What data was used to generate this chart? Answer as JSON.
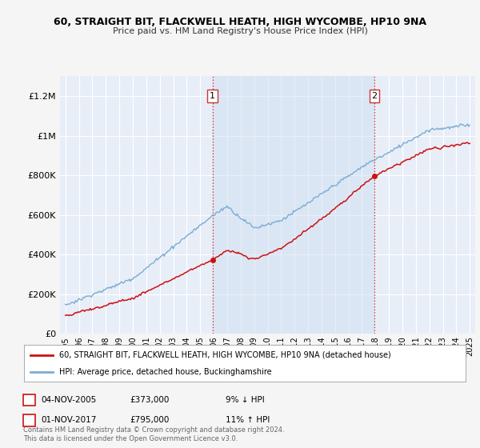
{
  "title": "60, STRAIGHT BIT, FLACKWELL HEATH, HIGH WYCOMBE, HP10 9NA",
  "subtitle": "Price paid vs. HM Land Registry's House Price Index (HPI)",
  "ytick_values": [
    0,
    200000,
    400000,
    600000,
    800000,
    1000000,
    1200000
  ],
  "ylim": [
    0,
    1300000
  ],
  "hpi_color": "#7aadd4",
  "price_color": "#cc1111",
  "background_color": "#f5f5f5",
  "plot_bg_color": "#e8eef8",
  "shade_color": "#ccddf0",
  "legend_label_price": "60, STRAIGHT BIT, FLACKWELL HEATH, HIGH WYCOMBE, HP10 9NA (detached house)",
  "legend_label_hpi": "HPI: Average price, detached house, Buckinghamshire",
  "sale1_date": "04-NOV-2005",
  "sale1_price": "£373,000",
  "sale1_hpi": "9% ↓ HPI",
  "sale2_date": "01-NOV-2017",
  "sale2_price": "£795,000",
  "sale2_hpi": "11% ↑ HPI",
  "footer": "Contains HM Land Registry data © Crown copyright and database right 2024.\nThis data is licensed under the Open Government Licence v3.0.",
  "sale1_year": 2005.917,
  "sale2_year": 2017.917,
  "sale1_val": 373000,
  "sale2_val": 795000,
  "xstart_year": 1995,
  "xend_year": 2025
}
